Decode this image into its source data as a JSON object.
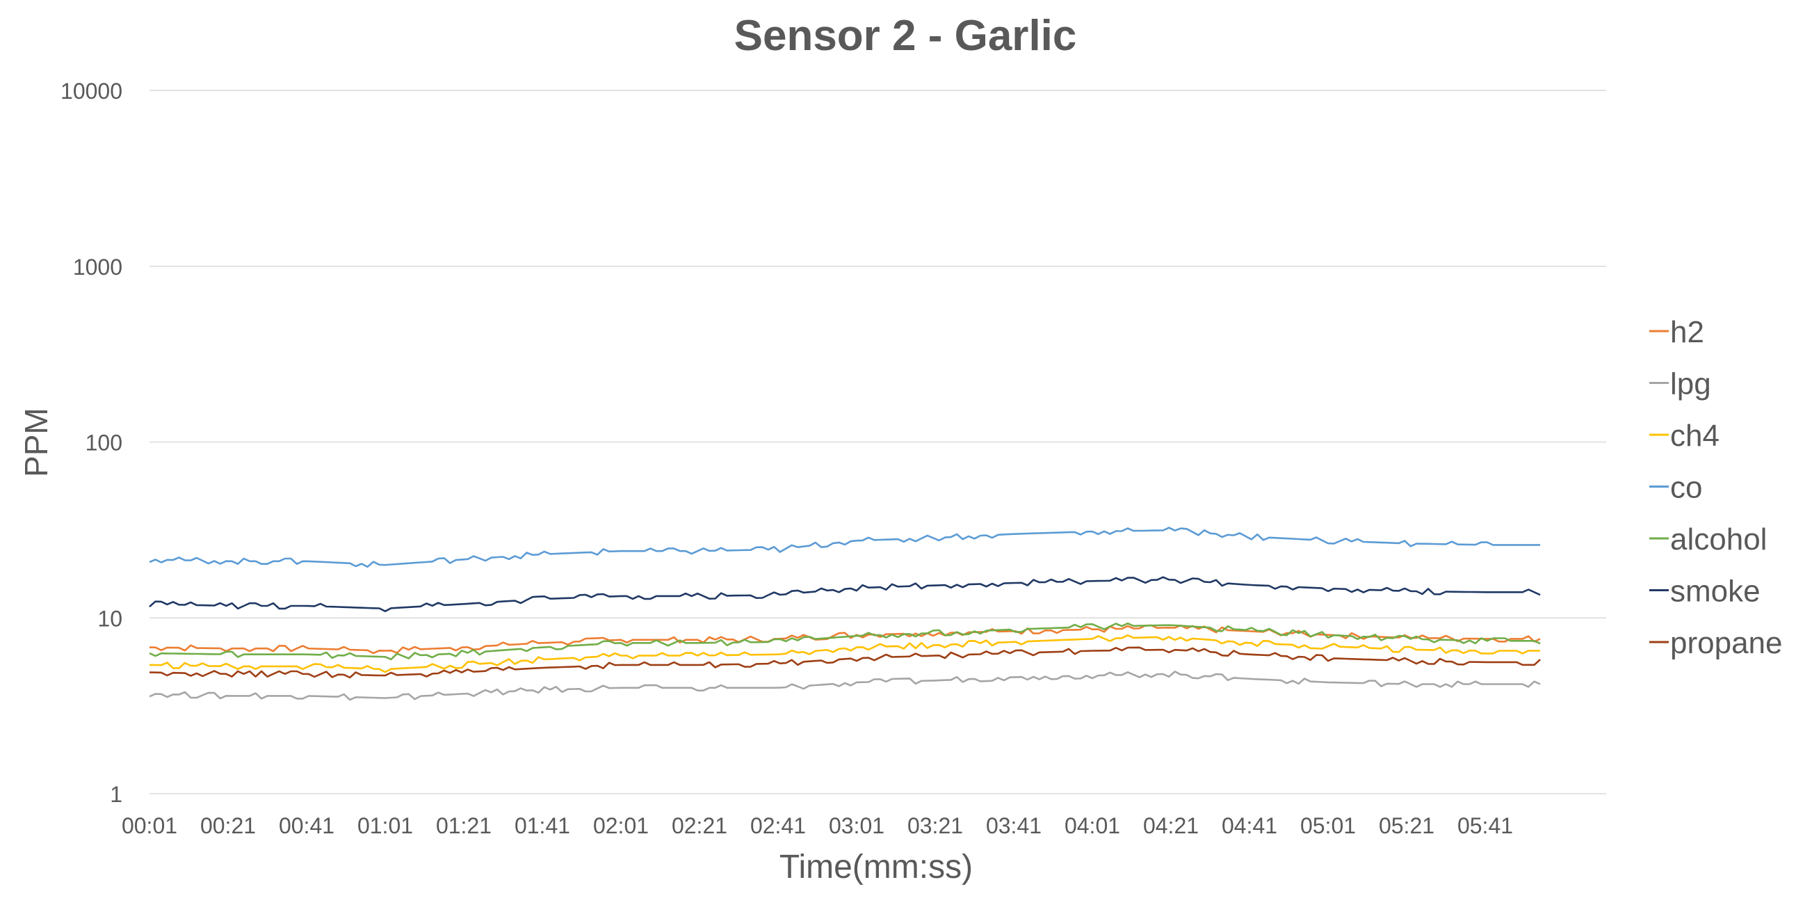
{
  "chart_data": {
    "type": "line",
    "title": "Sensor 2 - Garlic",
    "xlabel": "Time(mm:ss)",
    "ylabel": "PPM",
    "y_scale": "log",
    "ylim": [
      1,
      10000
    ],
    "y_ticks": [
      "1",
      "10",
      "100",
      "1000",
      "10000"
    ],
    "x_ticks": [
      "00:01",
      "00:21",
      "00:41",
      "01:01",
      "01:21",
      "01:41",
      "02:01",
      "02:21",
      "02:41",
      "03:01",
      "03:21",
      "03:41",
      "04:01",
      "04:21",
      "04:41",
      "05:01",
      "05:21",
      "05:41"
    ],
    "x_range_seconds_label": "00:01 to about 05:55",
    "grid": "horizontal",
    "legend_position": "right",
    "series": [
      {
        "name": "h2",
        "color": "#ED7D31",
        "x": [
          "00:01",
          "00:21",
          "00:41",
          "01:01",
          "01:21",
          "01:41",
          "02:01",
          "02:21",
          "02:41",
          "03:01",
          "03:21",
          "03:41",
          "04:01",
          "04:21",
          "04:41",
          "05:01",
          "05:21",
          "05:41",
          "05:55"
        ],
        "values": [
          6.8,
          6.7,
          6.7,
          6.5,
          6.8,
          7.2,
          7.5,
          7.5,
          7.6,
          8.0,
          8.2,
          8.4,
          8.6,
          8.8,
          8.4,
          8.0,
          7.7,
          7.6,
          7.6
        ]
      },
      {
        "name": "lpg",
        "color": "#A5A5A5",
        "x": [
          "00:01",
          "00:21",
          "00:41",
          "01:01",
          "01:21",
          "01:41",
          "02:01",
          "02:21",
          "02:41",
          "03:01",
          "03:21",
          "03:41",
          "04:01",
          "04:21",
          "04:41",
          "05:01",
          "05:21",
          "05:41",
          "05:55"
        ],
        "values": [
          3.7,
          3.6,
          3.6,
          3.5,
          3.7,
          3.9,
          4.0,
          4.0,
          4.0,
          4.3,
          4.4,
          4.6,
          4.7,
          4.8,
          4.5,
          4.3,
          4.2,
          4.2,
          4.2
        ]
      },
      {
        "name": "ch4",
        "color": "#FFC000",
        "x": [
          "00:01",
          "00:21",
          "00:41",
          "01:01",
          "01:21",
          "01:41",
          "02:01",
          "02:21",
          "02:41",
          "03:01",
          "03:21",
          "03:41",
          "04:01",
          "04:21",
          "04:41",
          "05:01",
          "05:21",
          "05:41",
          "05:55"
        ],
        "values": [
          5.4,
          5.3,
          5.3,
          5.1,
          5.4,
          5.8,
          6.1,
          6.1,
          6.2,
          6.8,
          7.0,
          7.3,
          7.6,
          7.8,
          7.2,
          6.9,
          6.6,
          6.5,
          6.5
        ]
      },
      {
        "name": "co",
        "color": "#5B9BD5",
        "x": [
          "00:01",
          "00:21",
          "00:41",
          "01:01",
          "01:21",
          "01:41",
          "02:01",
          "02:21",
          "02:41",
          "03:01",
          "03:21",
          "03:41",
          "04:01",
          "04:21",
          "04:41",
          "05:01",
          "05:21",
          "05:41",
          "05:55"
        ],
        "values": [
          21.5,
          21.0,
          21.0,
          20.0,
          21.5,
          23.0,
          24.0,
          24.0,
          24.5,
          27.5,
          28.5,
          30.0,
          31.0,
          31.5,
          29.0,
          27.5,
          26.5,
          26.0,
          26.0
        ]
      },
      {
        "name": "alcohol",
        "color": "#70AD47",
        "x": [
          "00:01",
          "00:21",
          "00:41",
          "01:01",
          "01:21",
          "01:41",
          "02:01",
          "02:21",
          "02:41",
          "03:01",
          "03:21",
          "03:41",
          "04:01",
          "04:21",
          "04:41",
          "05:01",
          "05:21",
          "05:41",
          "05:55"
        ],
        "values": [
          6.3,
          6.2,
          6.2,
          6.0,
          6.3,
          6.8,
          7.2,
          7.2,
          7.3,
          7.9,
          8.2,
          8.6,
          8.9,
          9.1,
          8.5,
          8.0,
          7.6,
          7.4,
          7.4
        ]
      },
      {
        "name": "smoke",
        "color": "#203864",
        "x": [
          "00:01",
          "00:21",
          "00:41",
          "01:01",
          "01:21",
          "01:41",
          "02:01",
          "02:21",
          "02:41",
          "03:01",
          "03:21",
          "03:41",
          "04:01",
          "04:21",
          "04:41",
          "05:01",
          "05:21",
          "05:41",
          "05:55"
        ],
        "values": [
          12.0,
          11.7,
          11.7,
          11.3,
          12.0,
          12.8,
          13.3,
          13.3,
          13.5,
          14.8,
          15.3,
          15.8,
          16.2,
          16.5,
          15.4,
          14.7,
          14.2,
          14.0,
          14.0
        ]
      },
      {
        "name": "propane",
        "color": "#9E3F15",
        "x": [
          "00:01",
          "00:21",
          "00:41",
          "01:01",
          "01:21",
          "01:41",
          "02:01",
          "02:21",
          "02:41",
          "03:01",
          "03:21",
          "03:41",
          "04:01",
          "04:21",
          "04:41",
          "05:01",
          "05:21",
          "05:41",
          "05:55"
        ],
        "values": [
          4.9,
          4.8,
          4.8,
          4.7,
          4.9,
          5.2,
          5.4,
          5.4,
          5.5,
          5.9,
          6.1,
          6.3,
          6.5,
          6.6,
          6.2,
          5.9,
          5.7,
          5.6,
          5.6
        ]
      }
    ]
  }
}
